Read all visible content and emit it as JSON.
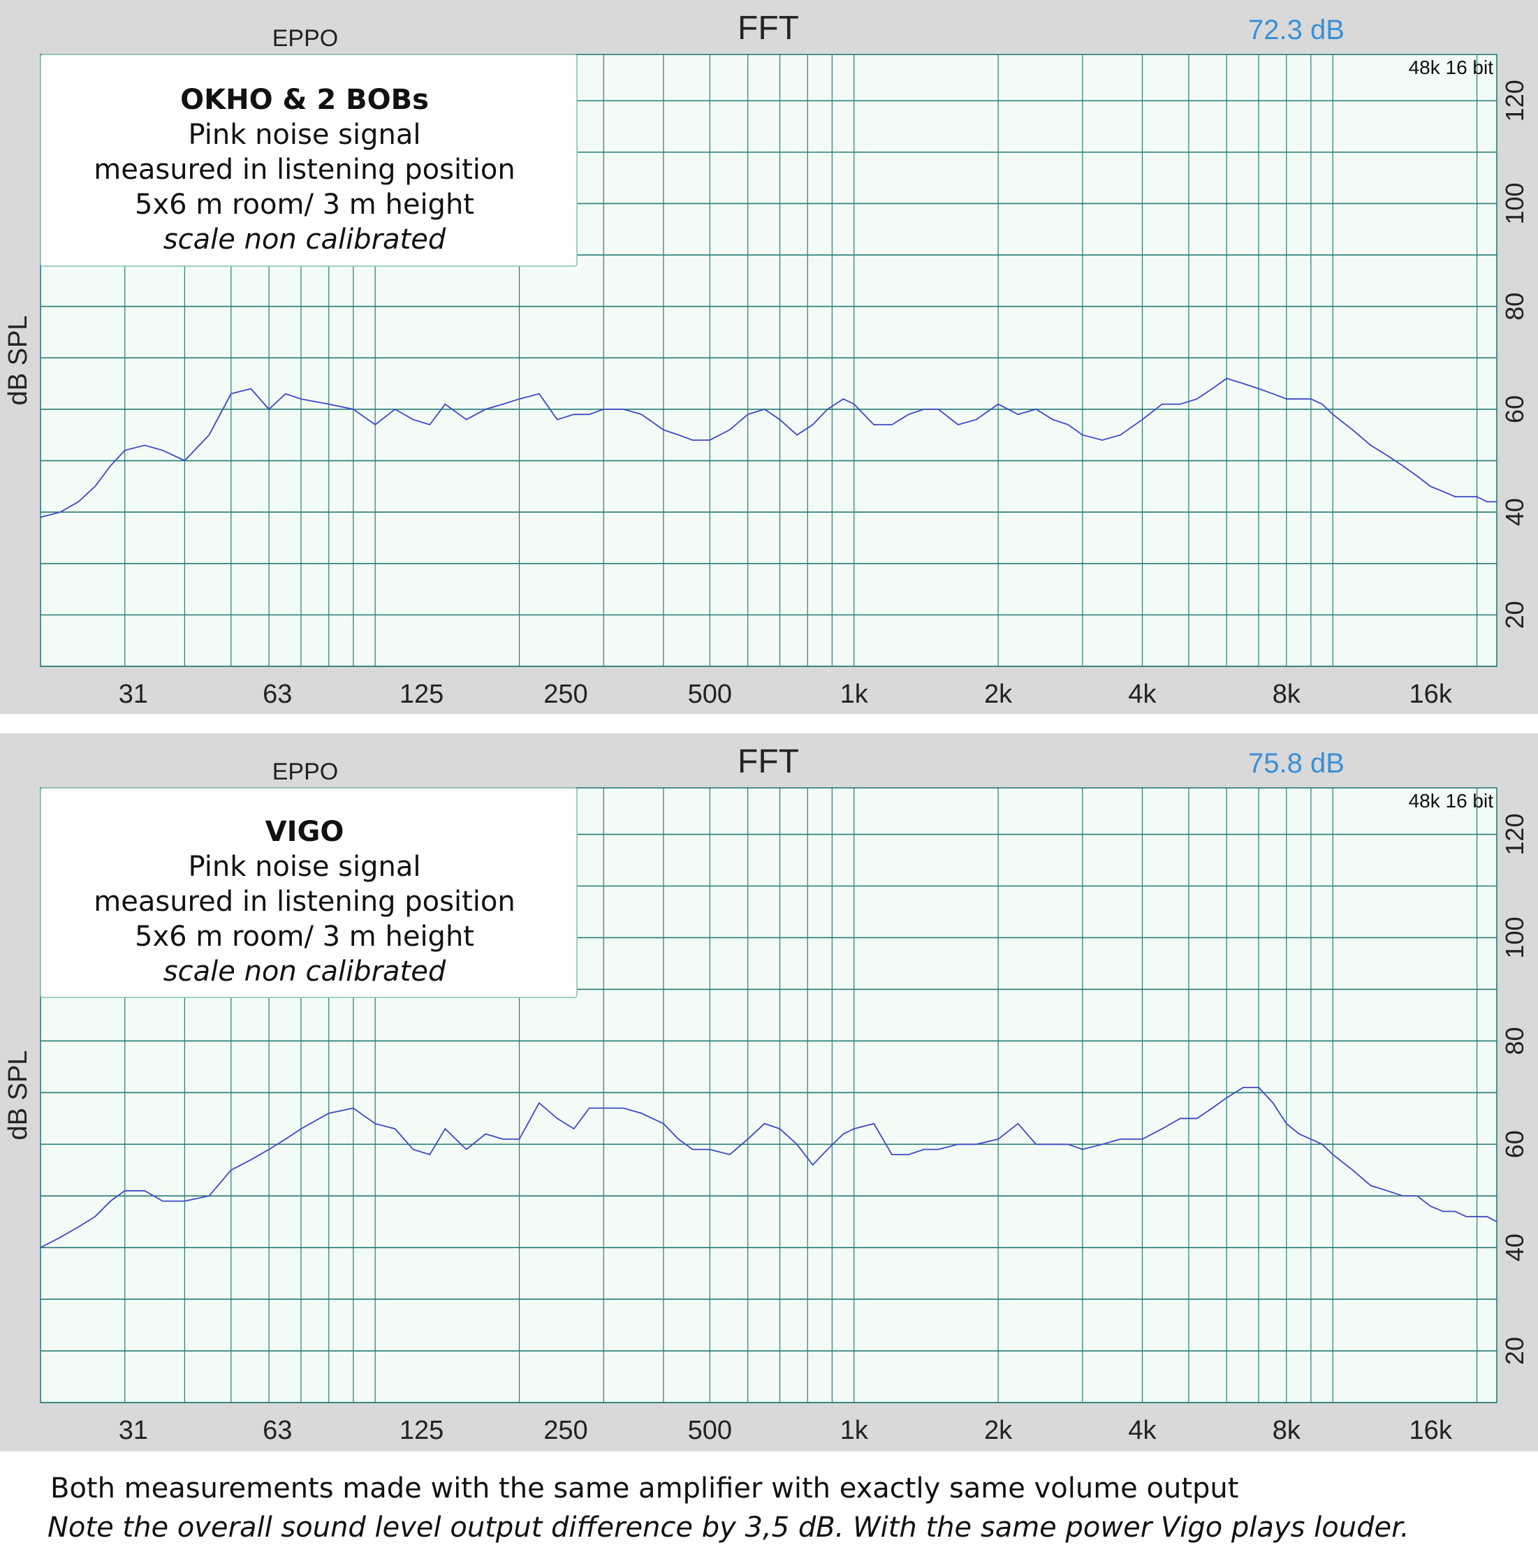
{
  "footer": {
    "line1": "Both measurements made with the same amplifier with exactly same volume output",
    "line2": "Note the overall sound level output difference by 3,5 dB. With the same power Vigo plays louder."
  },
  "chart_data": [
    {
      "type": "line",
      "title": "FFT",
      "app_label": "EPPO",
      "level_readout": "72.3 dB",
      "format_label": "48k 16 bit",
      "ylabel": "dB SPL",
      "xscale": "log",
      "xlim": [
        20,
        22000
      ],
      "ylim": [
        10,
        129
      ],
      "x_ticks": [
        "31",
        "63",
        "125",
        "250",
        "500",
        "1k",
        "2k",
        "4k",
        "8k",
        "16k"
      ],
      "y_ticks": [
        "20",
        "40",
        "60",
        "80",
        "100",
        "120"
      ],
      "grid": true,
      "annotation": {
        "title": "OKHO & 2 BOBs",
        "lines": [
          "Pink noise signal",
          "measured in listening position",
          "5x6 m room/ 3 m height"
        ],
        "italic_line": "scale non calibrated"
      },
      "series": [
        {
          "color": "#3d49c4",
          "x": [
            20,
            22,
            24,
            26,
            28,
            30,
            33,
            36,
            40,
            45,
            50,
            55,
            60,
            65,
            70,
            80,
            90,
            100,
            110,
            120,
            130,
            140,
            155,
            170,
            185,
            200,
            220,
            240,
            260,
            280,
            300,
            330,
            360,
            400,
            430,
            460,
            500,
            550,
            600,
            650,
            700,
            760,
            820,
            880,
            950,
            1000,
            1100,
            1200,
            1300,
            1400,
            1500,
            1650,
            1800,
            2000,
            2200,
            2400,
            2600,
            2800,
            3000,
            3300,
            3600,
            4000,
            4400,
            4800,
            5200,
            5600,
            6000,
            6500,
            7000,
            7500,
            8000,
            8500,
            9000,
            9500,
            10000,
            11000,
            12000,
            13000,
            14000,
            15000,
            16000,
            17000,
            18000,
            19000,
            20000,
            21000,
            22000
          ],
          "values": [
            39,
            40,
            42,
            45,
            49,
            52,
            53,
            52,
            50,
            55,
            63,
            64,
            60,
            63,
            62,
            61,
            60,
            57,
            60,
            58,
            57,
            61,
            58,
            60,
            61,
            62,
            63,
            58,
            59,
            59,
            60,
            60,
            59,
            56,
            55,
            54,
            54,
            56,
            59,
            60,
            58,
            55,
            57,
            60,
            62,
            61,
            57,
            57,
            59,
            60,
            60,
            57,
            58,
            61,
            59,
            60,
            58,
            57,
            55,
            54,
            55,
            58,
            61,
            61,
            62,
            64,
            66,
            65,
            64,
            63,
            62,
            62,
            62,
            61,
            59,
            56,
            53,
            51,
            49,
            47,
            45,
            44,
            43,
            43,
            43,
            42,
            42
          ]
        }
      ]
    },
    {
      "type": "line",
      "title": "FFT",
      "app_label": "EPPO",
      "level_readout": "75.8 dB",
      "format_label": "48k 16 bit",
      "ylabel": "dB SPL",
      "xscale": "log",
      "xlim": [
        20,
        22000
      ],
      "ylim": [
        10,
        129
      ],
      "x_ticks": [
        "31",
        "63",
        "125",
        "250",
        "500",
        "1k",
        "2k",
        "4k",
        "8k",
        "16k"
      ],
      "y_ticks": [
        "20",
        "40",
        "60",
        "80",
        "100",
        "120"
      ],
      "grid": true,
      "annotation": {
        "title": "VIGO",
        "lines": [
          "Pink noise signal",
          "measured in listening position",
          "5x6 m room/ 3 m height"
        ],
        "italic_line": "scale non calibrated"
      },
      "series": [
        {
          "color": "#3d49c4",
          "x": [
            20,
            22,
            24,
            26,
            28,
            30,
            33,
            36,
            40,
            45,
            50,
            55,
            60,
            65,
            70,
            80,
            90,
            100,
            110,
            120,
            130,
            140,
            155,
            170,
            185,
            200,
            220,
            240,
            260,
            280,
            300,
            330,
            360,
            400,
            430,
            460,
            500,
            550,
            600,
            650,
            700,
            760,
            820,
            880,
            950,
            1000,
            1100,
            1200,
            1300,
            1400,
            1500,
            1650,
            1800,
            2000,
            2200,
            2400,
            2600,
            2800,
            3000,
            3300,
            3600,
            4000,
            4400,
            4800,
            5200,
            5600,
            6000,
            6500,
            7000,
            7500,
            8000,
            8500,
            9000,
            9500,
            10000,
            11000,
            12000,
            13000,
            14000,
            15000,
            16000,
            17000,
            18000,
            19000,
            20000,
            21000,
            22000
          ],
          "values": [
            40,
            42,
            44,
            46,
            49,
            51,
            51,
            49,
            49,
            50,
            55,
            57,
            59,
            61,
            63,
            66,
            67,
            64,
            63,
            59,
            58,
            63,
            59,
            62,
            61,
            61,
            68,
            65,
            63,
            67,
            67,
            67,
            66,
            64,
            61,
            59,
            59,
            58,
            61,
            64,
            63,
            60,
            56,
            59,
            62,
            63,
            64,
            58,
            58,
            59,
            59,
            60,
            60,
            61,
            64,
            60,
            60,
            60,
            59,
            60,
            61,
            61,
            63,
            65,
            65,
            67,
            69,
            71,
            71,
            68,
            64,
            62,
            61,
            60,
            58,
            55,
            52,
            51,
            50,
            50,
            48,
            47,
            47,
            46,
            46,
            46,
            45
          ]
        }
      ]
    }
  ]
}
